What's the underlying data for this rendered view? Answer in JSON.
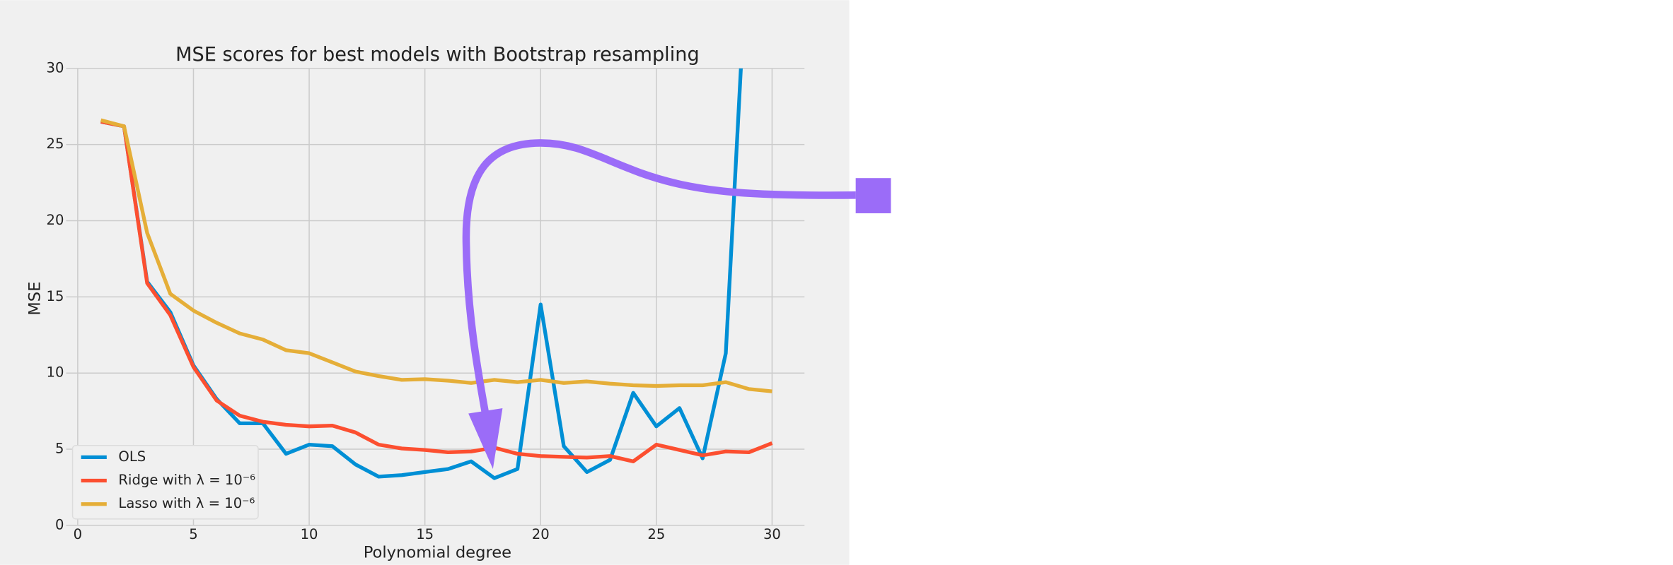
{
  "chart_data": {
    "type": "line",
    "title": "MSE scores for best models with Bootstrap resampling",
    "xlabel": "Polynomial degree",
    "ylabel": "MSE",
    "x": [
      1,
      2,
      3,
      4,
      5,
      6,
      7,
      8,
      9,
      10,
      11,
      12,
      13,
      14,
      15,
      16,
      17,
      18,
      19,
      20,
      21,
      22,
      23,
      24,
      25,
      26,
      27,
      28,
      29,
      30
    ],
    "series": [
      {
        "name": "OLS",
        "color": "#008fd5",
        "values": [
          26.5,
          26.2,
          16.0,
          14.0,
          10.5,
          8.3,
          6.7,
          6.7,
          4.7,
          5.3,
          5.2,
          4.0,
          3.2,
          3.3,
          3.5,
          3.7,
          4.2,
          3.1,
          3.7,
          14.5,
          5.2,
          3.5,
          4.3,
          8.7,
          6.5,
          7.7,
          4.4,
          11.3,
          40,
          null
        ]
      },
      {
        "name": "Ridge with λ = 10⁻⁶",
        "color": "#fc4f30",
        "values": [
          26.5,
          26.2,
          15.9,
          13.8,
          10.4,
          8.2,
          7.2,
          6.8,
          6.6,
          6.5,
          6.55,
          6.1,
          5.3,
          5.05,
          4.95,
          4.8,
          4.85,
          5.1,
          4.7,
          4.55,
          4.5,
          4.45,
          4.55,
          4.2,
          5.3,
          4.95,
          4.6,
          4.85,
          4.8,
          5.4
        ]
      },
      {
        "name": "Lasso with λ = 10⁻⁶",
        "color": "#e5ae38",
        "values": [
          26.6,
          26.2,
          19.2,
          15.2,
          14.1,
          13.3,
          12.6,
          12.2,
          11.5,
          11.3,
          10.7,
          10.1,
          9.8,
          9.55,
          9.6,
          9.5,
          9.35,
          9.55,
          9.4,
          9.55,
          9.35,
          9.45,
          9.3,
          9.2,
          9.15,
          9.2,
          9.2,
          9.4,
          8.95,
          8.8
        ]
      }
    ],
    "xlim": [
      -0.5,
      31.4
    ],
    "ylim": [
      0,
      30
    ],
    "xticks": [
      0,
      5,
      10,
      15,
      20,
      25,
      30
    ],
    "yticks": [
      0,
      5,
      10,
      15,
      20,
      25,
      30
    ],
    "grid": true,
    "legend": "lower left"
  }
}
